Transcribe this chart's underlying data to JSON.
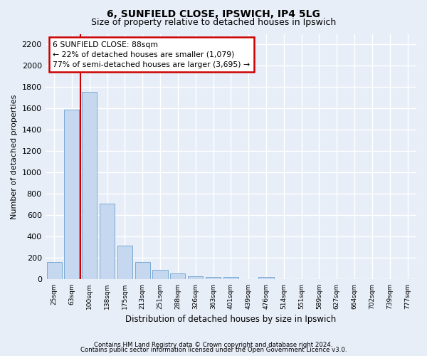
{
  "title": "6, SUNFIELD CLOSE, IPSWICH, IP4 5LG",
  "subtitle": "Size of property relative to detached houses in Ipswich",
  "xlabel": "Distribution of detached houses by size in Ipswich",
  "ylabel": "Number of detached properties",
  "footnote1": "Contains HM Land Registry data © Crown copyright and database right 2024.",
  "footnote2": "Contains public sector information licensed under the Open Government Licence v3.0.",
  "categories": [
    "25sqm",
    "63sqm",
    "100sqm",
    "138sqm",
    "175sqm",
    "213sqm",
    "251sqm",
    "288sqm",
    "326sqm",
    "363sqm",
    "401sqm",
    "439sqm",
    "476sqm",
    "514sqm",
    "551sqm",
    "589sqm",
    "627sqm",
    "664sqm",
    "702sqm",
    "739sqm",
    "777sqm"
  ],
  "values": [
    160,
    1590,
    1755,
    710,
    315,
    160,
    90,
    55,
    30,
    20,
    20,
    0,
    20,
    0,
    0,
    0,
    0,
    0,
    0,
    0,
    0
  ],
  "bar_color": "#c5d8f0",
  "bar_edge_color": "#7aabd4",
  "vline_index": 2,
  "vline_color": "#cc0000",
  "ylim": [
    0,
    2300
  ],
  "yticks": [
    0,
    200,
    400,
    600,
    800,
    1000,
    1200,
    1400,
    1600,
    1800,
    2000,
    2200
  ],
  "annotation_line1": "6 SUNFIELD CLOSE: 88sqm",
  "annotation_line2": "← 22% of detached houses are smaller (1,079)",
  "annotation_line3": "77% of semi-detached houses are larger (3,695) →",
  "ann_box_edge_color": "#cc0000",
  "bg_color": "#e8eef8",
  "plot_bg_color": "#e8eef8",
  "grid_color": "#ffffff",
  "title_fontsize": 10,
  "subtitle_fontsize": 9
}
